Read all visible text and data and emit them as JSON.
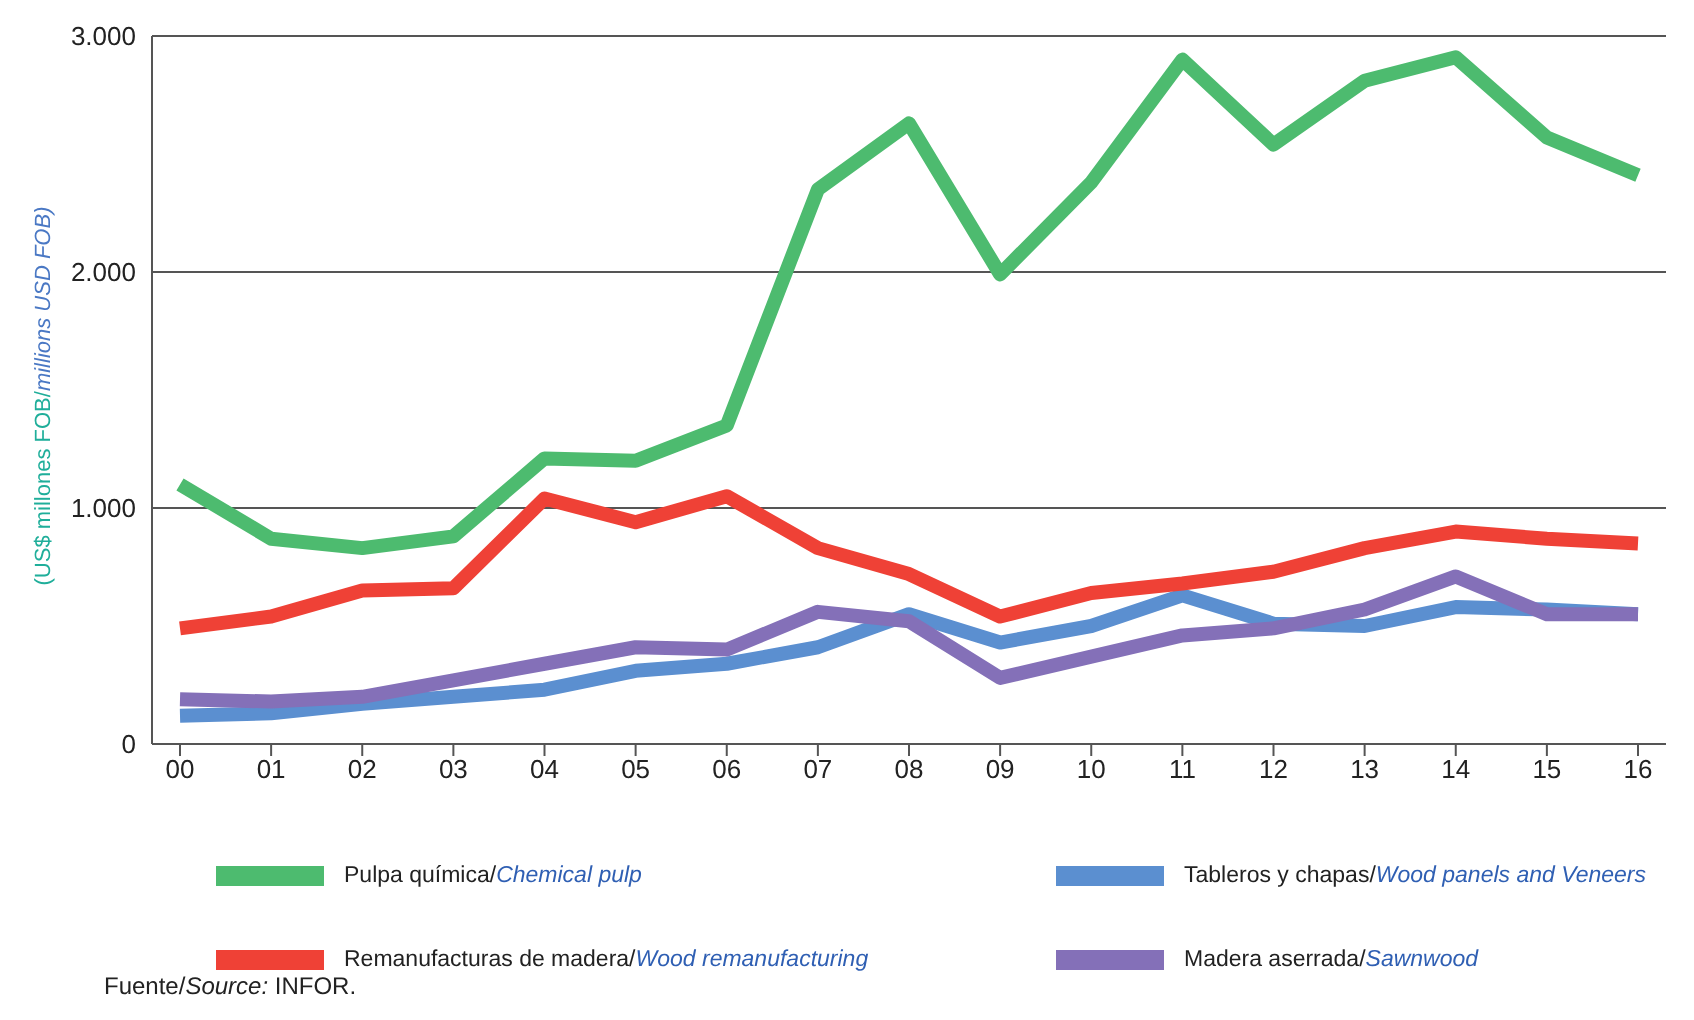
{
  "chart_data": {
    "type": "line",
    "ylabel": "(US$ millones FOB/millions USD FOB)",
    "categories": [
      "00",
      "01",
      "02",
      "03",
      "04",
      "05",
      "06",
      "07",
      "08",
      "09",
      "10",
      "11",
      "12",
      "13",
      "14",
      "15",
      "16"
    ],
    "series": [
      {
        "name": "Pulpa química/Chemical pulp",
        "color": "#4dbb6f",
        "values": [
          1100,
          870,
          830,
          880,
          1210,
          1200,
          1350,
          2350,
          2630,
          1990,
          2380,
          2900,
          2540,
          2810,
          2910,
          2570,
          2410
        ]
      },
      {
        "name": "Tableros y chapas/Wood panels and Veneers",
        "color": "#5b8fd0",
        "values": [
          120,
          130,
          170,
          200,
          230,
          310,
          340,
          410,
          550,
          430,
          500,
          630,
          510,
          500,
          580,
          570,
          550
        ]
      },
      {
        "name": "Remanufacturas de madera/Wood remanufacturing",
        "color": "#ef4136",
        "values": [
          490,
          540,
          650,
          660,
          1040,
          940,
          1050,
          830,
          720,
          540,
          640,
          680,
          730,
          830,
          900,
          870,
          850
        ]
      },
      {
        "name": "Madera aserrada/Sawnwood",
        "color": "#8470b8",
        "values": [
          190,
          180,
          200,
          270,
          340,
          410,
          400,
          560,
          520,
          280,
          370,
          460,
          490,
          570,
          710,
          550,
          550
        ]
      }
    ],
    "ylim": [
      0,
      3000
    ],
    "yticks": [
      0,
      {
        "value": 1000,
        "label": "1.000"
      },
      {
        "value": 2000,
        "label": "2.000"
      },
      {
        "value": 3000,
        "label": "3.000"
      }
    ],
    "grid": "y",
    "legend": "bottom",
    "marker": "none",
    "line_style": "solid",
    "annotations": [
      "Fuente/Source: INFOR."
    ]
  }
}
